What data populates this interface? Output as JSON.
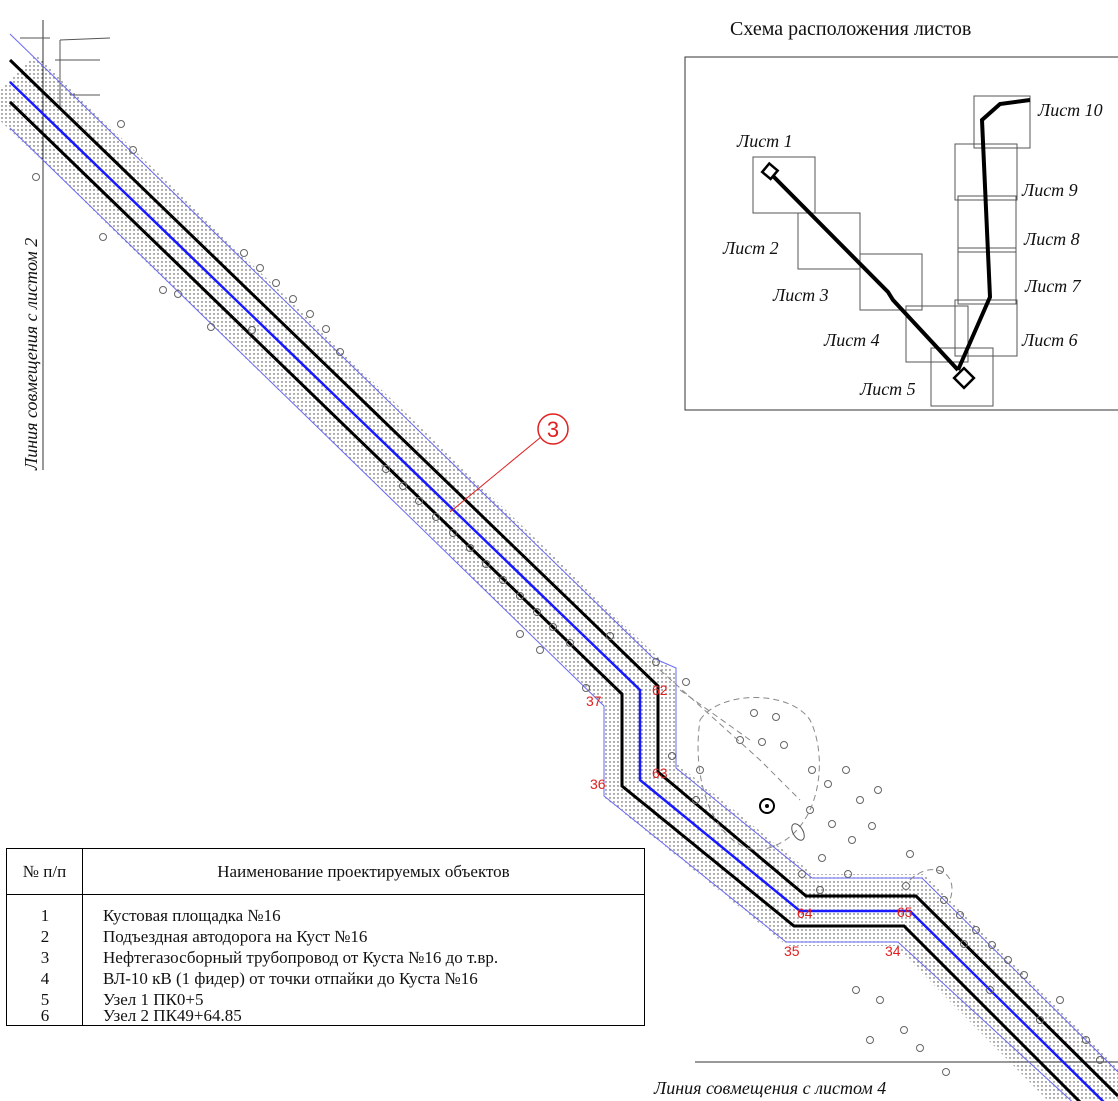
{
  "scheme": {
    "title": "Схема расположения листов",
    "sheets": [
      "Лист 1",
      "Лист 2",
      "Лист 3",
      "Лист 4",
      "Лист 5",
      "Лист 6",
      "Лист 7",
      "Лист 8",
      "Лист 9",
      "Лист 10"
    ]
  },
  "match_lines": {
    "left": "Линия совмещения с листом 2",
    "bottom": "Линия совмещения с листом 4"
  },
  "callout": "3",
  "point_labels": [
    "62",
    "37",
    "63",
    "36",
    "64",
    "65",
    "35",
    "34"
  ],
  "legend": {
    "header_num": "№ п/п",
    "header_name": "Наименование проектируемых объектов",
    "rows": [
      {
        "num": "1",
        "name": "Кустовая площадка №16"
      },
      {
        "num": "2",
        "name": "Подъездная автодорога на Куст №16"
      },
      {
        "num": "3",
        "name": "Нефтегазосборный трубопровод от Куста №16 до т.вр."
      },
      {
        "num": "4",
        "name": "ВЛ-10 кВ (1 фидер) от точки отпайки до Куста №16"
      },
      {
        "num": "5",
        "name": "Узел 1 ПК0+5"
      },
      {
        "num": "6",
        "name": "Узел 2 ПК49+64.85"
      }
    ]
  },
  "colors": {
    "route_line": "#000000",
    "axis_line": "#1a1aff",
    "corridor": "#4a4af0",
    "point_label": "#e02020",
    "callout": "#e02020"
  }
}
